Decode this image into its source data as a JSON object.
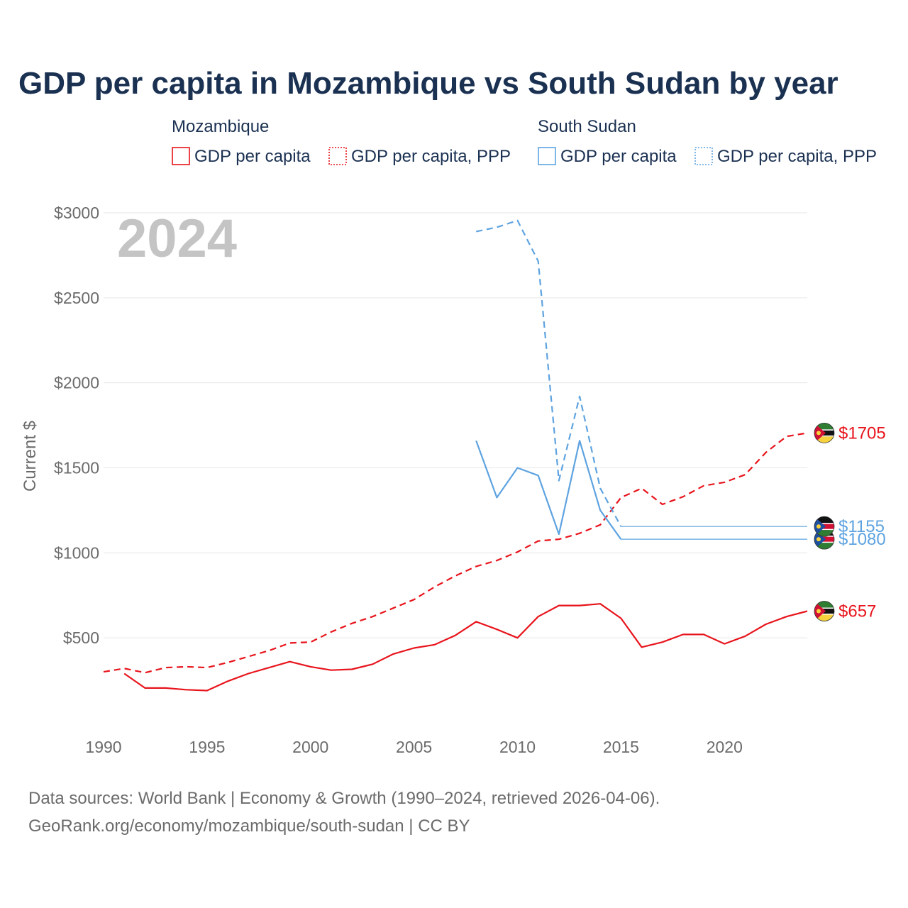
{
  "chart_data": {
    "type": "line",
    "title": "GDP per capita in Mozambique vs South Sudan by year",
    "year_watermark": "2024",
    "ylabel": "Current $",
    "xlabel": "",
    "xlim": [
      1990,
      2024
    ],
    "ylim": [
      0,
      3000
    ],
    "y_ticks": [
      {
        "value": 500,
        "label": "$500"
      },
      {
        "value": 1000,
        "label": "$1000"
      },
      {
        "value": 1500,
        "label": "$1500"
      },
      {
        "value": 2000,
        "label": "$2000"
      },
      {
        "value": 2500,
        "label": "$2500"
      },
      {
        "value": 3000,
        "label": "$3000"
      }
    ],
    "x_ticks": [
      {
        "value": 1990,
        "label": "1990"
      },
      {
        "value": 1995,
        "label": "1995"
      },
      {
        "value": 2000,
        "label": "2000"
      },
      {
        "value": 2005,
        "label": "2005"
      },
      {
        "value": 2010,
        "label": "2010"
      },
      {
        "value": 2015,
        "label": "2015"
      },
      {
        "value": 2020,
        "label": "2020"
      }
    ],
    "legend": {
      "groups": [
        {
          "name": "Mozambique",
          "color": "#e8141c",
          "items": [
            {
              "label": "GDP per capita",
              "style": "solid"
            },
            {
              "label": "GDP per capita, PPP",
              "style": "dotted"
            }
          ]
        },
        {
          "name": "South Sudan",
          "color": "#5ea3e0",
          "items": [
            {
              "label": "GDP per capita",
              "style": "solid"
            },
            {
              "label": "GDP per capita, PPP",
              "style": "dotted"
            }
          ]
        }
      ]
    },
    "series": [
      {
        "name": "Mozambique GDP per capita",
        "country": "Mozambique",
        "color": "#e8141c",
        "dash": "solid",
        "x": [
          1991,
          1992,
          1993,
          1994,
          1995,
          1996,
          1997,
          1998,
          1999,
          2000,
          2001,
          2002,
          2003,
          2004,
          2005,
          2006,
          2007,
          2008,
          2009,
          2010,
          2011,
          2012,
          2013,
          2014,
          2015,
          2016,
          2017,
          2018,
          2019,
          2020,
          2021,
          2022,
          2023,
          2024
        ],
        "values": [
          290,
          205,
          205,
          195,
          190,
          245,
          290,
          325,
          360,
          330,
          310,
          315,
          345,
          405,
          440,
          460,
          515,
          595,
          550,
          500,
          625,
          690,
          690,
          700,
          615,
          445,
          475,
          520,
          520,
          465,
          510,
          580,
          625,
          657
        ],
        "end_label": "$657",
        "end_value": 657
      },
      {
        "name": "Mozambique GDP per capita, PPP",
        "country": "Mozambique",
        "color": "#e8141c",
        "dash": "dashed",
        "x": [
          1990,
          1991,
          1992,
          1993,
          1994,
          1995,
          1996,
          1997,
          1998,
          1999,
          2000,
          2001,
          2002,
          2003,
          2004,
          2005,
          2006,
          2007,
          2008,
          2009,
          2010,
          2011,
          2012,
          2013,
          2014,
          2015,
          2016,
          2017,
          2018,
          2019,
          2020,
          2021,
          2022,
          2023,
          2024
        ],
        "values": [
          300,
          320,
          295,
          325,
          330,
          325,
          355,
          390,
          425,
          470,
          475,
          535,
          585,
          625,
          675,
          725,
          800,
          865,
          920,
          955,
          1005,
          1070,
          1080,
          1115,
          1165,
          1325,
          1380,
          1285,
          1330,
          1395,
          1415,
          1460,
          1590,
          1685,
          1705
        ],
        "end_label": "$1705",
        "end_value": 1705
      },
      {
        "name": "South Sudan GDP per capita",
        "country": "South Sudan",
        "color": "#5ea3e0",
        "dash": "solid",
        "x": [
          2008,
          2009,
          2010,
          2011,
          2012,
          2013,
          2014,
          2015
        ],
        "values": [
          1660,
          1325,
          1500,
          1455,
          1110,
          1660,
          1250,
          1080
        ],
        "end_label": "$1080",
        "end_value": 1080
      },
      {
        "name": "South Sudan GDP per capita, PPP",
        "country": "South Sudan",
        "color": "#5ea3e0",
        "dash": "dashed",
        "x": [
          2008,
          2009,
          2010,
          2011,
          2012,
          2013,
          2014,
          2015
        ],
        "values": [
          2890,
          2915,
          2955,
          2715,
          1425,
          1920,
          1380,
          1155
        ],
        "end_label": "$1155",
        "end_value": 1155
      }
    ],
    "source_lines": [
      "Data sources: World Bank | Economy & Growth (1990–2024, retrieved 2026-04-06).",
      "GeoRank.org/economy/mozambique/south-sudan | CC BY"
    ]
  }
}
